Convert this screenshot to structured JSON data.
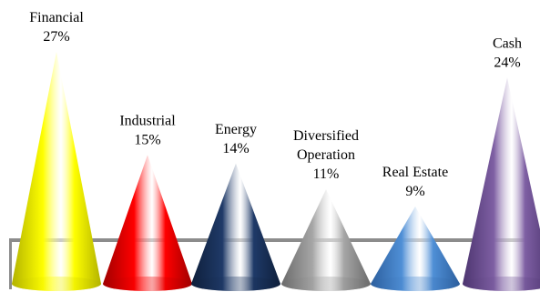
{
  "chart_data": {
    "type": "bar",
    "shape": "cone",
    "title": "",
    "xlabel": "",
    "ylabel": "",
    "ylim": [
      0,
      27
    ],
    "grid": false,
    "legend": "none",
    "categories": [
      "Financial",
      "Industrial",
      "Energy",
      "Diversified Operation",
      "Real Estate",
      "Cash"
    ],
    "values": [
      27,
      15,
      14,
      11,
      9,
      24
    ],
    "value_labels": [
      "27%",
      "15%",
      "14%",
      "11%",
      "9%",
      "24%"
    ],
    "label_lines": [
      [
        "Financial"
      ],
      [
        "Industrial"
      ],
      [
        "Energy"
      ],
      [
        "Diversified",
        "Operation"
      ],
      [
        "Real Estate"
      ],
      [
        "Cash"
      ]
    ],
    "colors": [
      "#ffff00",
      "#ff0000",
      "#1f3a68",
      "#a6a6a6",
      "#4f8fd6",
      "#7e5fa3"
    ],
    "dark_colors": [
      "#b3b300",
      "#a00000",
      "#0e1f3b",
      "#6b6b6b",
      "#2c5f9e",
      "#4d3570"
    ],
    "base_color": "#999999"
  }
}
